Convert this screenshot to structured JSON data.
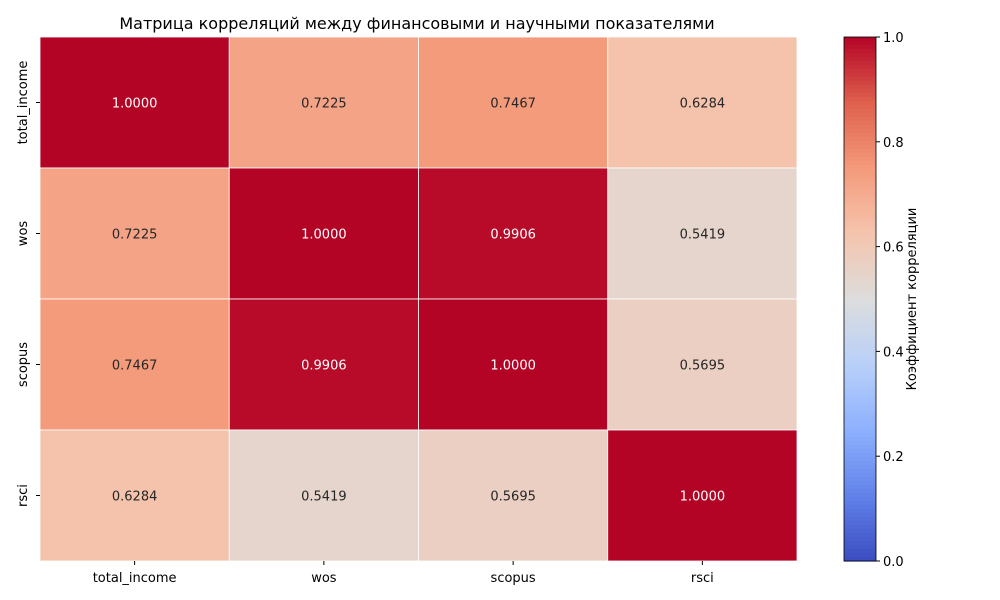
{
  "chart_data": {
    "type": "heatmap",
    "title": "Матрица корреляций между финансовыми и научными показателями",
    "x_labels": [
      "total_income",
      "wos",
      "scopus",
      "rsci"
    ],
    "y_labels": [
      "total_income",
      "wos",
      "scopus",
      "rsci"
    ],
    "values": [
      [
        1.0,
        0.7225,
        0.7467,
        0.6284
      ],
      [
        0.7225,
        1.0,
        0.9906,
        0.5419
      ],
      [
        0.7467,
        0.9906,
        1.0,
        0.5695
      ],
      [
        0.6284,
        0.5419,
        0.5695,
        1.0
      ]
    ],
    "value_format": "4 decimals",
    "colormap": "coolwarm",
    "vmin": 0.0,
    "vmax": 1.0,
    "colorbar": {
      "label": "Коэффициент корреляции",
      "ticks": [
        0.0,
        0.2,
        0.4,
        0.6,
        0.8,
        1.0
      ],
      "tick_labels": [
        "0.0",
        "0.2",
        "0.4",
        "0.6",
        "0.8",
        "1.0"
      ],
      "position": "right"
    },
    "cell_border_color": "#ffffff",
    "grid": false
  }
}
